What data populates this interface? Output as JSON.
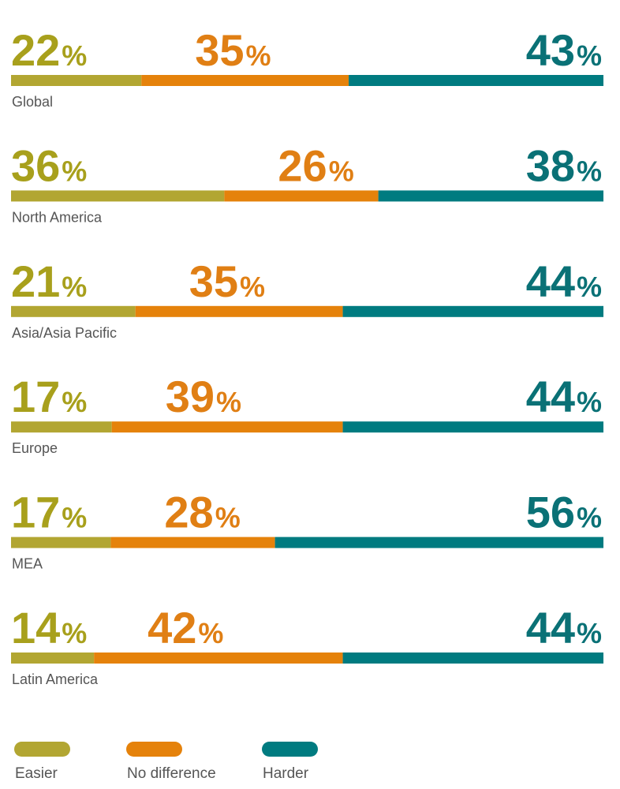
{
  "colors": {
    "easier": "#b2a632",
    "easier_text": "#a8a01c",
    "no_difference": "#e5820b",
    "no_difference_text": "#e07f14",
    "harder": "#007b80",
    "harder_text": "#0a7176"
  },
  "percent_sign": "%",
  "chart_data": {
    "type": "bar",
    "orientation": "horizontal",
    "stacked": true,
    "normalized": true,
    "categories": [
      "Global",
      "North America",
      "Asia/Asia Pacific",
      "Europe",
      "MEA",
      "Latin America"
    ],
    "series": [
      {
        "name": "Easier",
        "key": "easier",
        "values": [
          22,
          36,
          21,
          17,
          17,
          14
        ]
      },
      {
        "name": "No difference",
        "key": "no_difference",
        "values": [
          35,
          26,
          35,
          39,
          28,
          42
        ]
      },
      {
        "name": "Harder",
        "key": "harder",
        "values": [
          43,
          38,
          44,
          44,
          56,
          44
        ]
      }
    ],
    "unit": "%",
    "grid": false,
    "legend_position": "bottom-left"
  }
}
